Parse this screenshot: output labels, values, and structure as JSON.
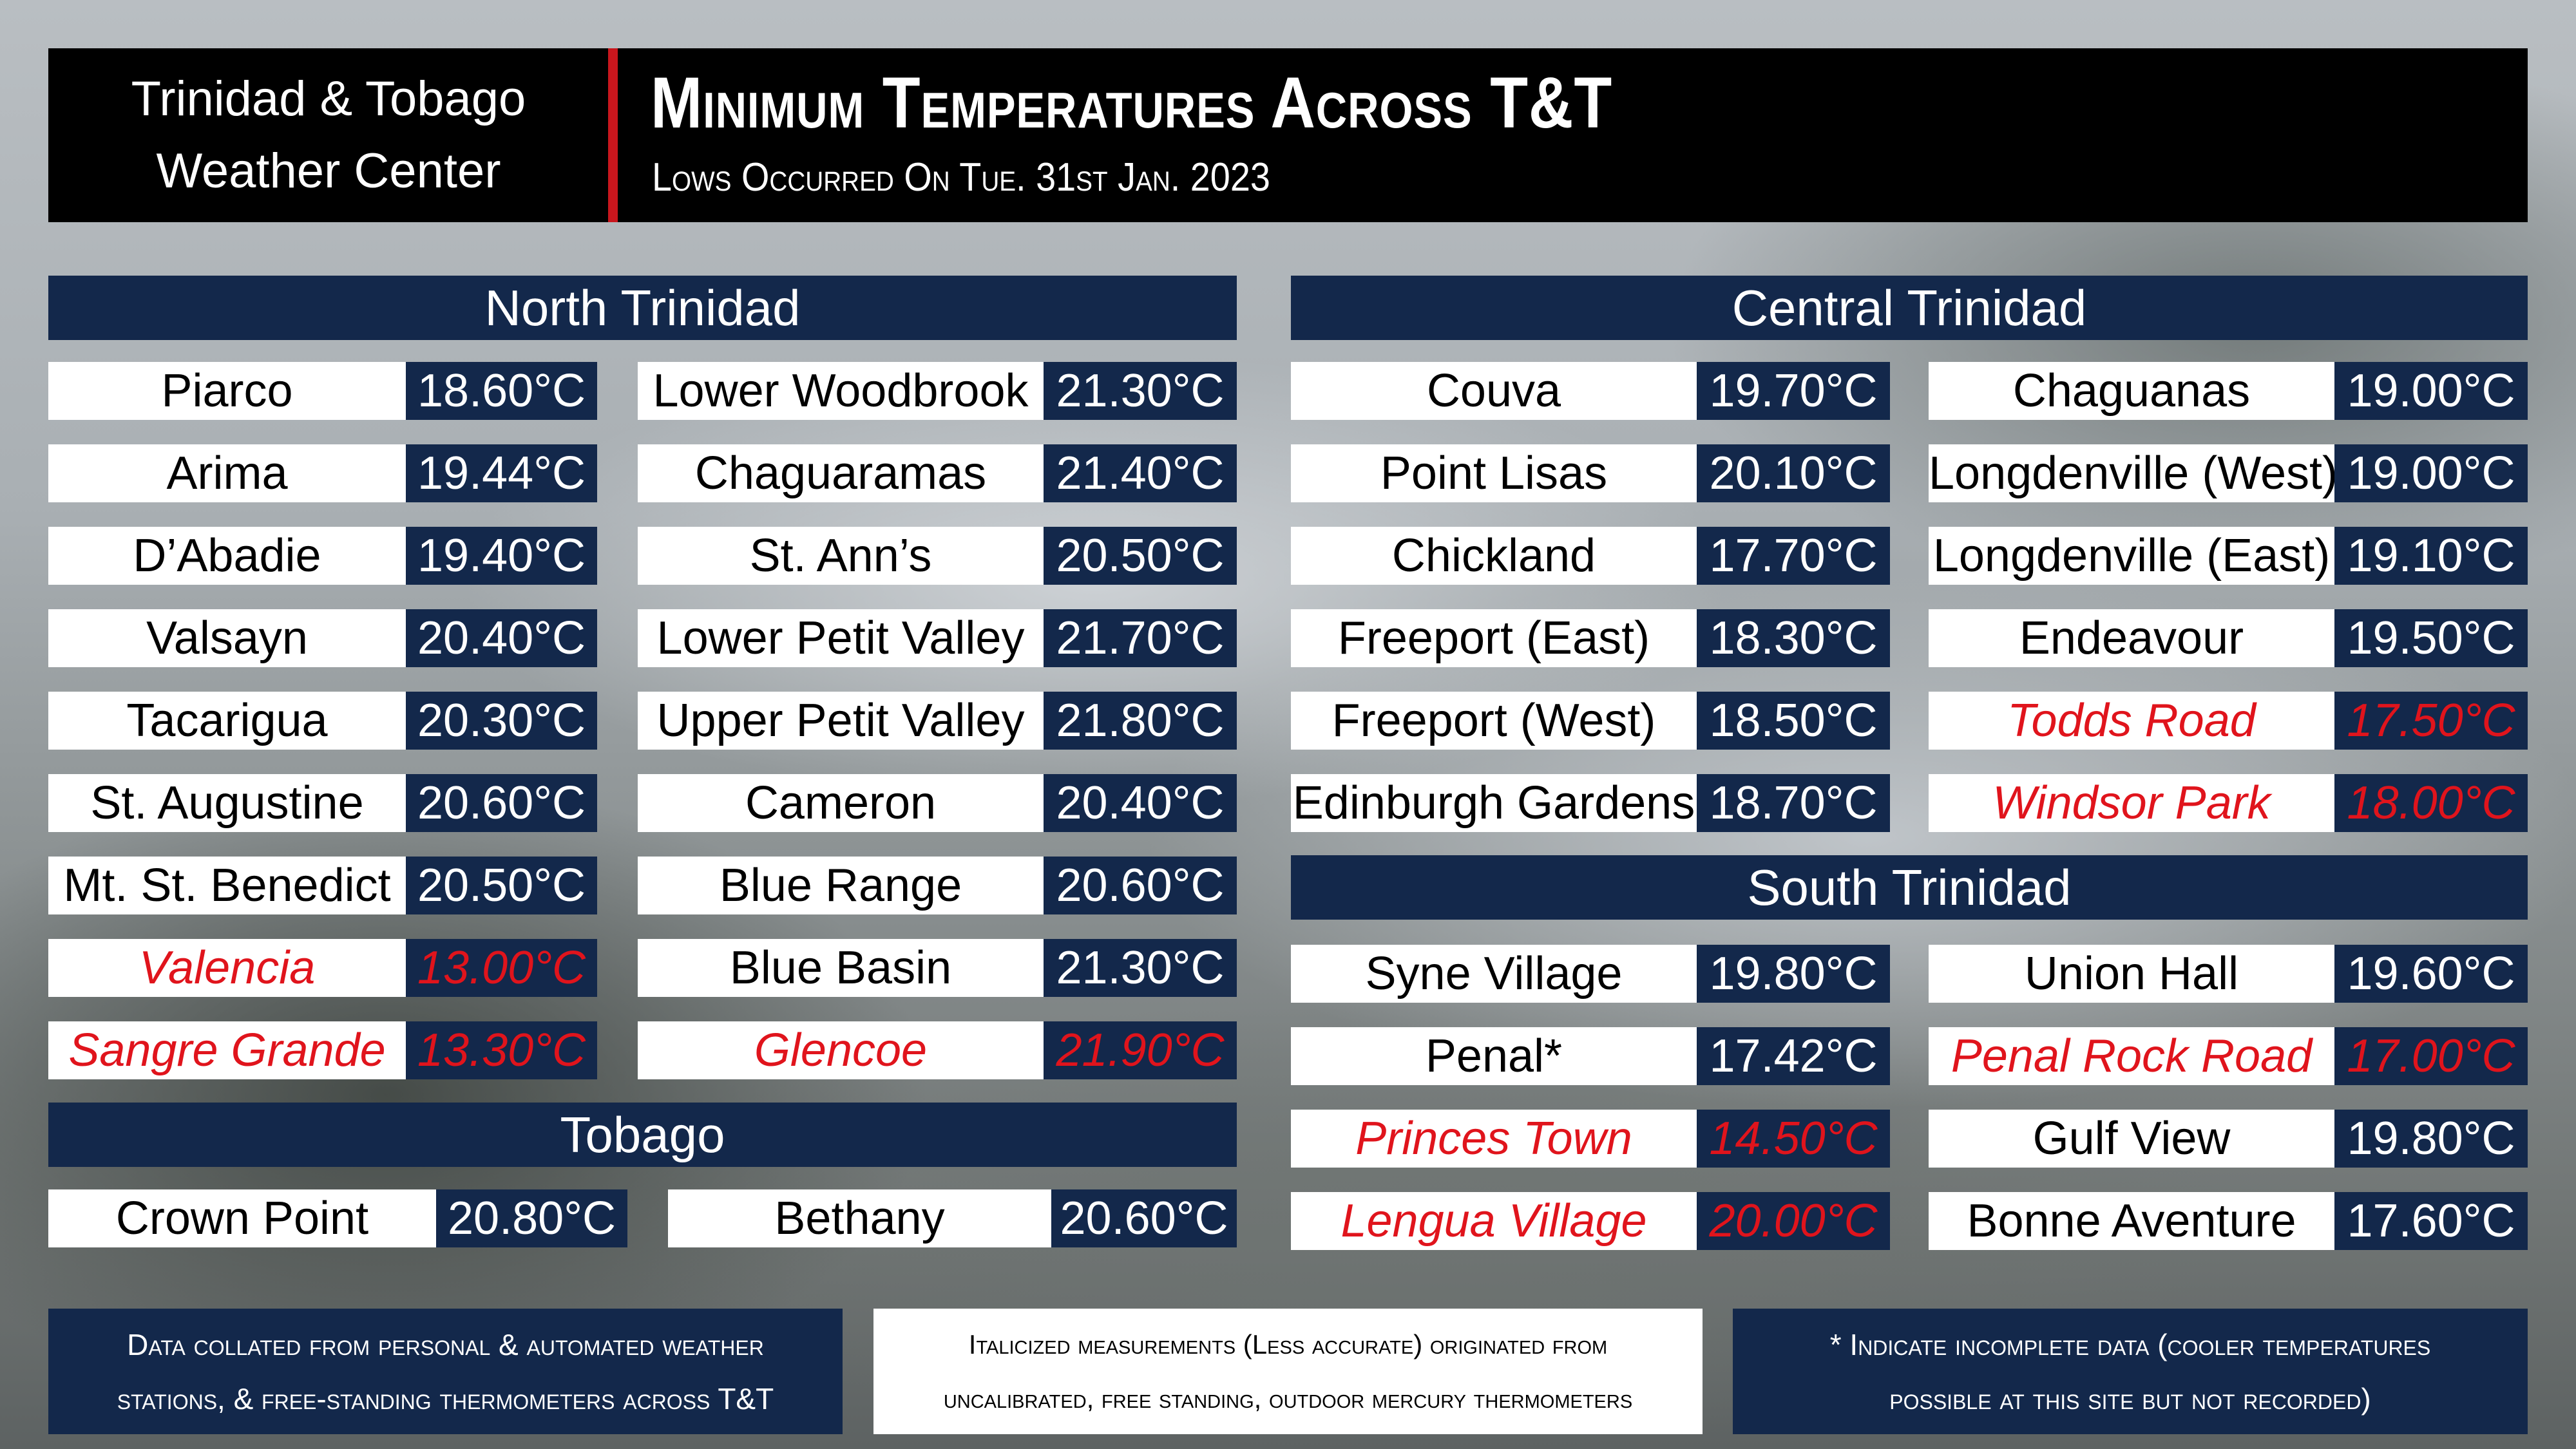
{
  "header": {
    "brand_line1": "Trinidad & Tobago",
    "brand_line2": "Weather Center",
    "title": "Minimum Temperatures Across T&T",
    "subtitle": "Lows Occurred On Tue. 31st Jan. 2023"
  },
  "north": {
    "title": "North Trinidad",
    "col1": [
      {
        "name": "Piarco",
        "value": "18.60°C",
        "italic": false
      },
      {
        "name": "Arima",
        "value": "19.44°C",
        "italic": false
      },
      {
        "name": "D’Abadie",
        "value": "19.40°C",
        "italic": false
      },
      {
        "name": "Valsayn",
        "value": "20.40°C",
        "italic": false
      },
      {
        "name": "Tacarigua",
        "value": "20.30°C",
        "italic": false
      },
      {
        "name": "St. Augustine",
        "value": "20.60°C",
        "italic": false
      },
      {
        "name": "Mt. St. Benedict",
        "value": "20.50°C",
        "italic": false
      },
      {
        "name": "Valencia",
        "value": "13.00°C",
        "italic": true
      },
      {
        "name": "Sangre Grande",
        "value": "13.30°C",
        "italic": true
      }
    ],
    "col2": [
      {
        "name": "Lower Woodbrook",
        "value": "21.30°C",
        "italic": false
      },
      {
        "name": "Chaguaramas",
        "value": "21.40°C",
        "italic": false
      },
      {
        "name": "St. Ann’s",
        "value": "20.50°C",
        "italic": false
      },
      {
        "name": "Lower Petit Valley",
        "value": "21.70°C",
        "italic": false
      },
      {
        "name": "Upper Petit Valley",
        "value": "21.80°C",
        "italic": false
      },
      {
        "name": "Cameron",
        "value": "20.40°C",
        "italic": false
      },
      {
        "name": "Blue Range",
        "value": "20.60°C",
        "italic": false
      },
      {
        "name": "Blue Basin",
        "value": "21.30°C",
        "italic": false
      },
      {
        "name": "Glencoe",
        "value": "21.90°C",
        "italic": true
      }
    ]
  },
  "tobago": {
    "title": "Tobago",
    "col1": [
      {
        "name": "Crown Point",
        "value": "20.80°C",
        "italic": false
      }
    ],
    "col2": [
      {
        "name": "Bethany",
        "value": "20.60°C",
        "italic": false
      }
    ]
  },
  "central": {
    "title": "Central Trinidad",
    "col1": [
      {
        "name": "Couva",
        "value": "19.70°C",
        "italic": false
      },
      {
        "name": "Point Lisas",
        "value": "20.10°C",
        "italic": false
      },
      {
        "name": "Chickland",
        "value": "17.70°C",
        "italic": false
      },
      {
        "name": "Freeport (East)",
        "value": "18.30°C",
        "italic": false
      },
      {
        "name": "Freeport (West)",
        "value": "18.50°C",
        "italic": false
      },
      {
        "name": "Edinburgh Gardens",
        "value": "18.70°C",
        "italic": false
      }
    ],
    "col2": [
      {
        "name": "Chaguanas",
        "value": "19.00°C",
        "italic": false
      },
      {
        "name": "Longdenville (West)",
        "value": "19.00°C",
        "italic": false
      },
      {
        "name": "Longdenville (East)",
        "value": "19.10°C",
        "italic": false
      },
      {
        "name": "Endeavour",
        "value": "19.50°C",
        "italic": false
      },
      {
        "name": "Todds Road",
        "value": "17.50°C",
        "italic": true
      },
      {
        "name": "Windsor Park",
        "value": "18.00°C",
        "italic": true
      }
    ]
  },
  "south": {
    "title": "South Trinidad",
    "col1": [
      {
        "name": "Syne Village",
        "value": "19.80°C",
        "italic": false
      },
      {
        "name": "Penal*",
        "value": "17.42°C",
        "italic": false
      },
      {
        "name": "Princes Town",
        "value": "14.50°C",
        "italic": true
      },
      {
        "name": "Lengua Village",
        "value": "20.00°C",
        "italic": true
      }
    ],
    "col2": [
      {
        "name": "Union Hall",
        "value": "19.60°C",
        "italic": false
      },
      {
        "name": "Penal Rock Road",
        "value": "17.00°C",
        "italic": true
      },
      {
        "name": "Gulf View",
        "value": "19.80°C",
        "italic": false
      },
      {
        "name": "Bonne Aventure",
        "value": "17.60°C",
        "italic": false
      }
    ]
  },
  "footer": {
    "left_line1": "Data collated from personal & automated weather",
    "left_line2": "stations, & free-standing thermometers across T&T",
    "mid_line1": "Italicized measurements (Less accurate) originated from",
    "mid_line2": "uncalibrated, free standing, outdoor mercury thermometers",
    "right_line1": "* Indicate incomplete data (cooler temperatures",
    "right_line2": "possible at this site but not recorded)"
  }
}
